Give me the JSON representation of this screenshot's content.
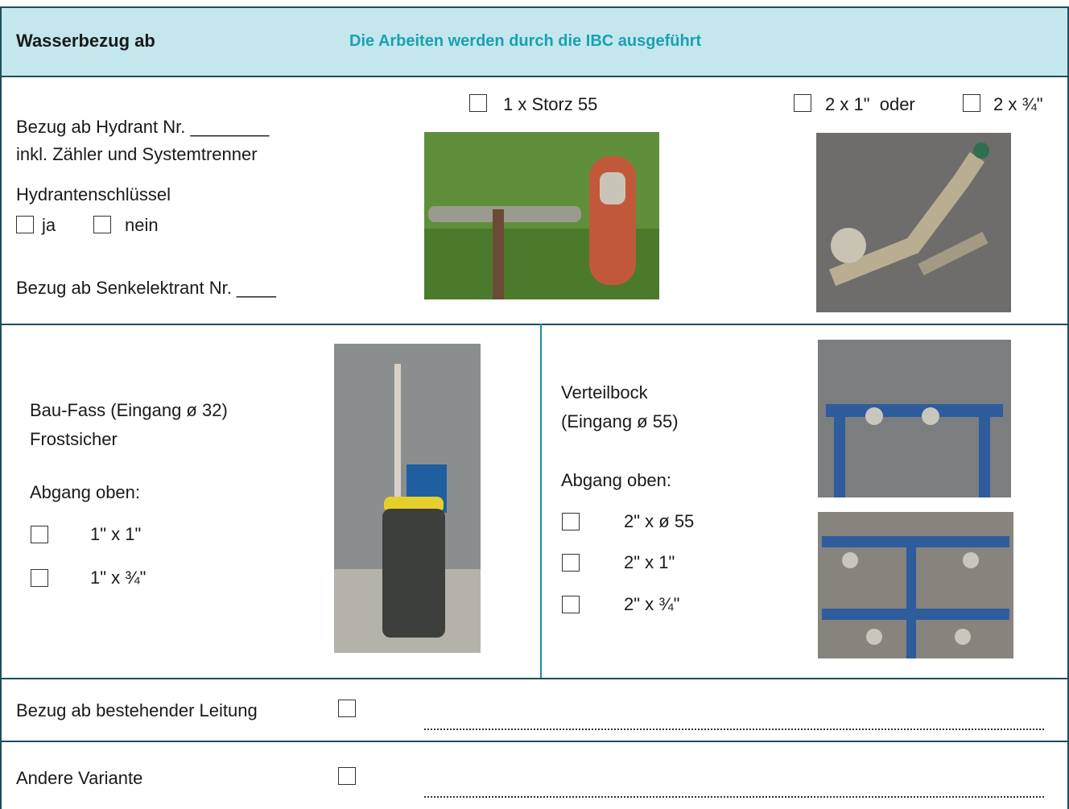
{
  "header": {
    "title": "Wasserbezug ab",
    "note": "Die Arbeiten werden durch die IBC ausgeführt"
  },
  "hydrant": {
    "lines": [
      "Bezug ab Hydrant Nr. ________",
      "inkl. Zähler und Systemtrenner",
      "Hydrantenschlüssel"
    ],
    "key_options": [
      "ja",
      "nein"
    ],
    "senk": "Bezug ab Senkelektrant Nr. ____",
    "options": [
      "1 x Storz 55",
      "2 x 1\"  oder",
      "2 x ¾\""
    ]
  },
  "baufass": {
    "lines": [
      "Bau-Fass (Eingang ø 32)",
      "Frostsicher",
      "Abgang oben:"
    ],
    "options": [
      "1\" x 1\"",
      "1\" x ¾\""
    ]
  },
  "verteilbock": {
    "lines": [
      "Verteilbock",
      "(Eingang ø 55)",
      "Abgang oben:"
    ],
    "options": [
      "2\" x ø 55",
      "2\" x 1\"",
      "2\" x ¾\""
    ]
  },
  "rows": [
    "Bezug ab bestehender Leitung",
    "Andere Variante"
  ]
}
